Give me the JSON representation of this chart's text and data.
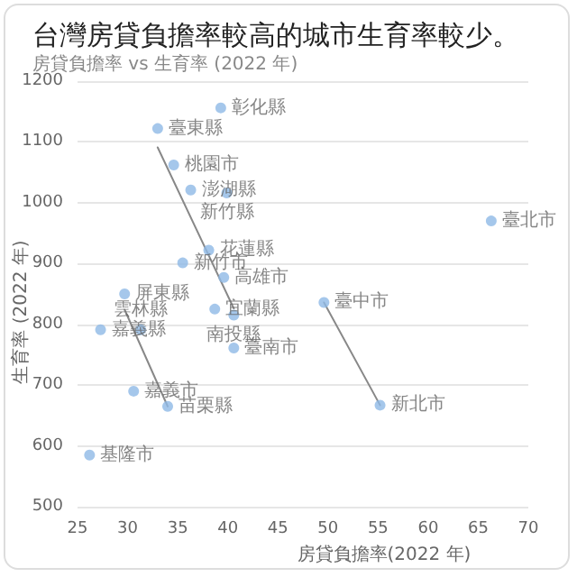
{
  "chart_data": {
    "type": "scatter",
    "title": "台灣房貸負擔率較高的城市生育率較少。",
    "subtitle": "房貸負擔率 vs 生育率 (2022 年)",
    "xlabel": "房貸負擔率(2022 年)",
    "ylabel": "生育率 (2022 年)",
    "xlim": [
      25,
      70
    ],
    "xticks": [
      25,
      30,
      35,
      40,
      45,
      50,
      55,
      60,
      65,
      70
    ],
    "ylim": [
      500,
      1200
    ],
    "yticks": [
      500,
      600,
      700,
      800,
      900,
      1000,
      1100,
      1200
    ],
    "grid": "y",
    "marker": "circle",
    "series": [
      {
        "color": "#8fb9e6",
        "x": [
          39.3,
          33.0,
          34.6,
          36.3,
          39.9,
          38.1,
          35.5,
          39.6,
          29.7,
          38.7,
          40.6,
          27.3,
          31.3,
          40.6,
          30.6,
          34.0,
          26.2,
          66.3,
          49.6,
          55.2
        ],
        "values": [
          1156,
          1122,
          1062,
          1021,
          1016,
          922,
          901,
          877,
          850,
          825,
          815,
          791,
          791,
          761,
          690,
          665,
          585,
          970,
          836,
          667
        ],
        "value_labels": [
          "彰化縣",
          "臺東縣",
          "桃園市",
          "澎湖縣",
          "新竹縣",
          "花蓮縣",
          "新竹市",
          "高雄市",
          "屏東縣",
          "宜蘭縣",
          "南投縣",
          "嘉義縣",
          "雲林縣",
          "臺南市",
          "嘉義市",
          "苗栗縣",
          "基隆市",
          "臺北市",
          "臺中市",
          "新北市"
        ]
      },
      {
        "type": "line",
        "color": "#888888",
        "marker": "none",
        "x": [
          33.0,
          40.6
        ],
        "values": [
          1091,
          826
        ]
      },
      {
        "type": "line",
        "color": "#888888",
        "marker": "none",
        "x": [
          29.7,
          34.0
        ],
        "values": [
          824,
          665
        ]
      },
      {
        "type": "line",
        "color": "#888888",
        "marker": "none",
        "x": [
          49.6,
          55.2
        ],
        "values": [
          836,
          667
        ]
      }
    ]
  }
}
